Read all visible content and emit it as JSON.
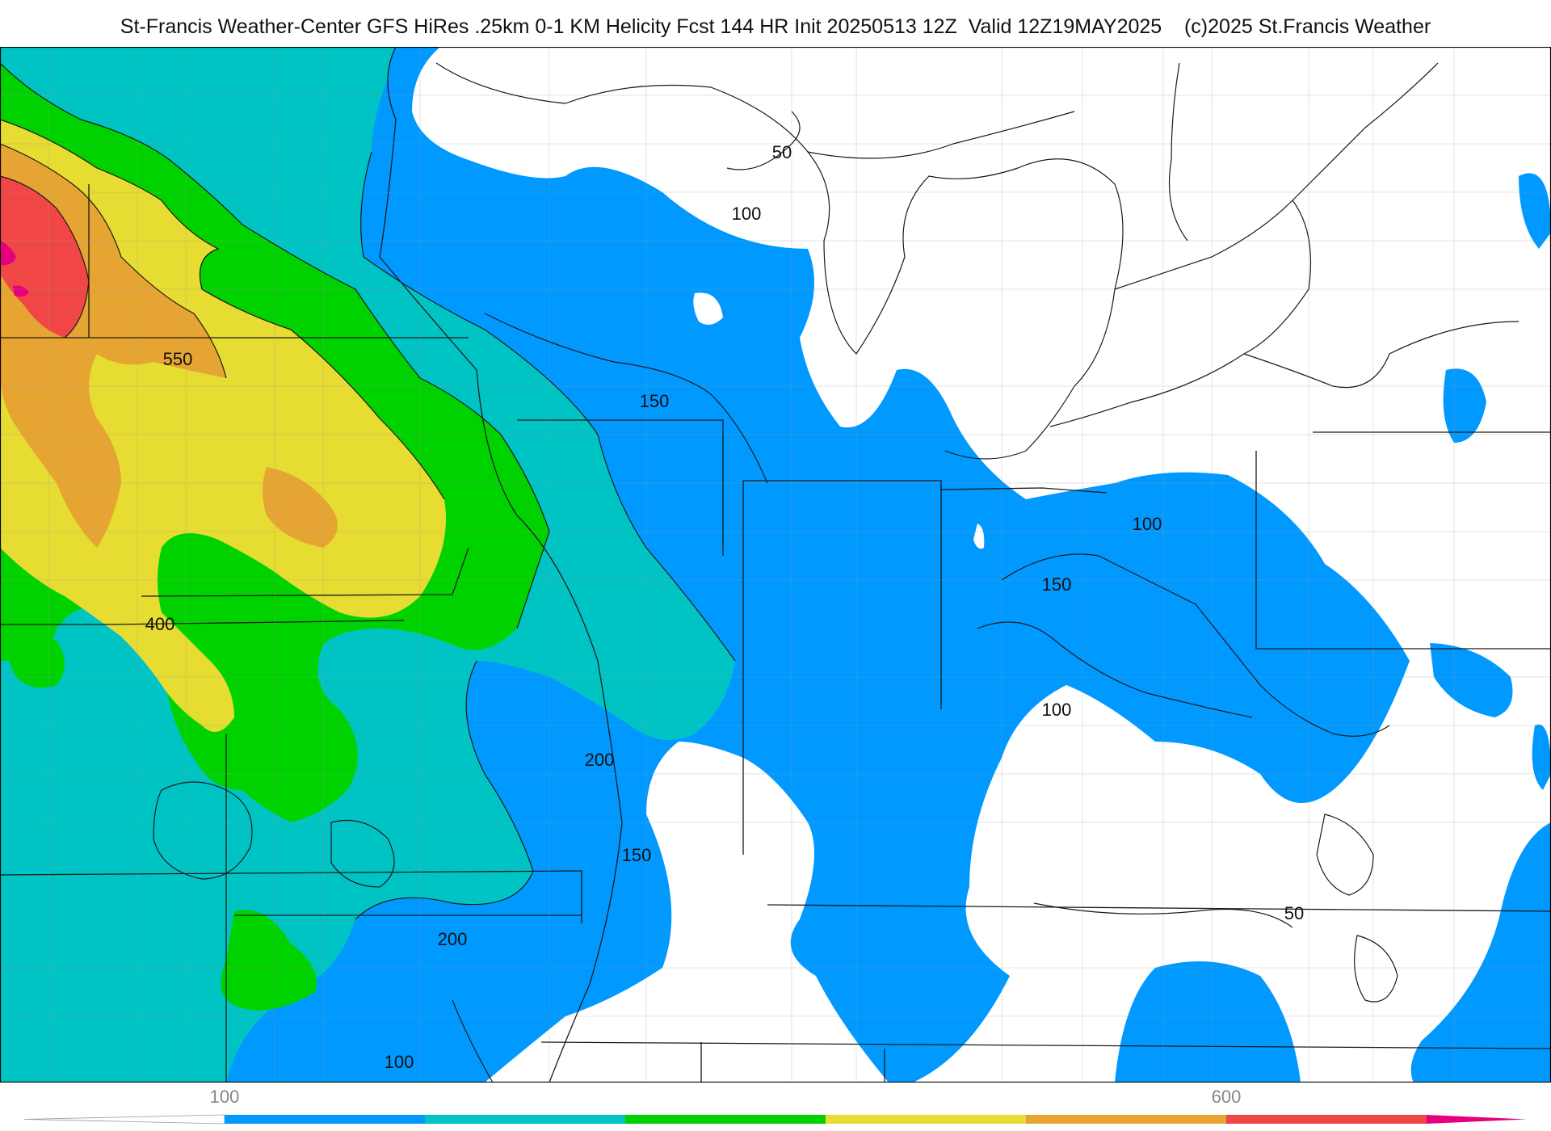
{
  "header": {
    "title": "St-Francis Weather-Center GFS HiRes .25km 0-1 KM Helicity Fcst 144 HR Init 20250513 12Z  Valid 12Z19MAY2025    (c)2025 St.Francis Weather"
  },
  "map": {
    "contour_labels": [
      {
        "id": "550",
        "text": "550"
      },
      {
        "id": "400",
        "text": "400"
      },
      {
        "id": "200-central",
        "text": "200"
      },
      {
        "id": "200-south",
        "text": "200"
      },
      {
        "id": "150-north",
        "text": "150"
      },
      {
        "id": "150-south",
        "text": "150"
      },
      {
        "id": "150-east",
        "text": "150"
      },
      {
        "id": "100-north",
        "text": "100"
      },
      {
        "id": "100-east",
        "text": "100"
      },
      {
        "id": "100-ohio",
        "text": "100"
      },
      {
        "id": "100-south",
        "text": "100"
      },
      {
        "id": "50-north",
        "text": "50"
      },
      {
        "id": "50-southeast",
        "text": "50"
      }
    ]
  },
  "colorbar": {
    "tick_labels": [
      {
        "value": 100,
        "text": "100"
      },
      {
        "value": 600,
        "text": "600"
      }
    ],
    "range": [
      0,
      750
    ],
    "bins": [
      {
        "from": 0,
        "to": 100,
        "color": "#ffffff"
      },
      {
        "from": 100,
        "to": 200,
        "color": "#0099ff"
      },
      {
        "from": 200,
        "to": 300,
        "color": "#00c4c4"
      },
      {
        "from": 300,
        "to": 400,
        "color": "#00d200"
      },
      {
        "from": 400,
        "to": 500,
        "color": "#e6dc32"
      },
      {
        "from": 500,
        "to": 600,
        "color": "#e6a532"
      },
      {
        "from": 600,
        "to": 700,
        "color": "#f04646"
      },
      {
        "from": 700,
        "to": 750,
        "color": "#e6007d"
      }
    ]
  },
  "palette": {
    "lt100": "#ffffff",
    "c100": "#0099ff",
    "c200": "#00c4c4",
    "c300": "#00d200",
    "c400": "#e6dc32",
    "c500": "#e6a532",
    "c600": "#f04646",
    "c700": "#e6007d"
  }
}
